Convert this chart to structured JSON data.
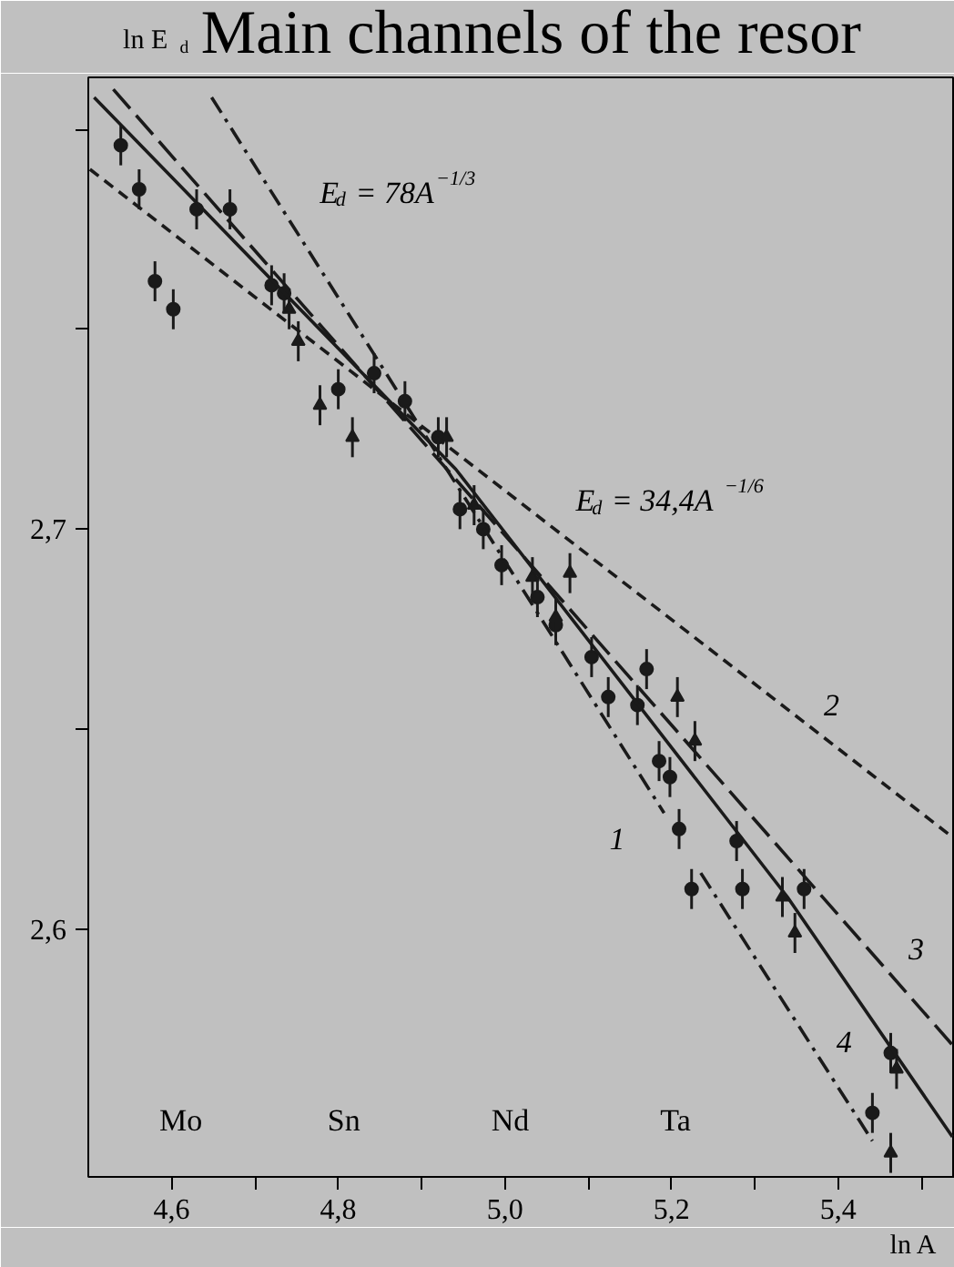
{
  "chart_data": {
    "type": "scatter",
    "title": "Main channels of the resor",
    "xlabel": "ln A",
    "ylabel": "ln E$_{d}$",
    "xlim": [
      4.5,
      5.54
    ],
    "ylim": [
      2.538,
      2.813
    ],
    "xticks": [
      {
        "value": 4.6,
        "label": "4,6"
      },
      {
        "value": 4.7,
        "label": null
      },
      {
        "value": 4.8,
        "label": "4,8"
      },
      {
        "value": 4.9,
        "label": null
      },
      {
        "value": 5.0,
        "label": "5,0"
      },
      {
        "value": 5.1,
        "label": null
      },
      {
        "value": 5.2,
        "label": "5,2"
      },
      {
        "value": 5.3,
        "label": null
      },
      {
        "value": 5.4,
        "label": "5,4"
      },
      {
        "value": 5.5,
        "label": null
      }
    ],
    "yticks": [
      {
        "value": 2.6,
        "label": "2,6"
      },
      {
        "value": 2.65,
        "label": null
      },
      {
        "value": 2.7,
        "label": "2,7"
      },
      {
        "value": 2.75,
        "label": null
      },
      {
        "value": 2.8,
        "label": null
      }
    ],
    "series": [
      {
        "marker": "circle",
        "color": "#1a1a1a",
        "x": [
          4.539,
          4.561,
          4.58,
          4.602,
          4.63,
          4.67,
          4.72,
          4.735,
          4.8,
          4.843,
          4.88,
          4.92,
          4.946,
          4.974,
          4.996,
          5.039,
          5.061,
          5.104,
          5.124,
          5.159,
          5.17,
          5.185,
          5.198,
          5.209,
          5.224,
          5.278,
          5.285,
          5.359,
          5.441,
          5.463
        ],
        "values": [
          2.796,
          2.785,
          2.762,
          2.755,
          2.78,
          2.78,
          2.761,
          2.759,
          2.735,
          2.739,
          2.732,
          2.723,
          2.705,
          2.7,
          2.691,
          2.683,
          2.676,
          2.668,
          2.658,
          2.656,
          2.665,
          2.642,
          2.638,
          2.625,
          2.61,
          2.622,
          2.61,
          2.61,
          2.554,
          2.569
        ],
        "errors": [
          0.005,
          0.005,
          0.005,
          0.005,
          0.005,
          0.005,
          0.005,
          0.005,
          0.005,
          0.005,
          0.005,
          0.005,
          0.005,
          0.005,
          0.005,
          0.005,
          0.005,
          0.005,
          0.005,
          0.005,
          0.005,
          0.005,
          0.005,
          0.005,
          0.005,
          0.005,
          0.005,
          0.005,
          0.005,
          0.005
        ]
      },
      {
        "marker": "triangle",
        "color": "#1a1a1a",
        "x": [
          4.741,
          4.752,
          4.778,
          4.817,
          4.93,
          4.963,
          5.033,
          5.061,
          5.078,
          5.207,
          5.228,
          5.333,
          5.348,
          5.47,
          5.463
        ],
        "values": [
          2.755,
          2.747,
          2.731,
          2.723,
          2.723,
          2.706,
          2.688,
          2.678,
          2.689,
          2.658,
          2.647,
          2.608,
          2.599,
          2.565,
          2.544
        ],
        "errors": [
          0.005,
          0.005,
          0.005,
          0.005,
          0.005,
          0.005,
          0.005,
          0.005,
          0.005,
          0.005,
          0.005,
          0.005,
          0.005,
          0.005,
          0.005
        ]
      },
      {
        "type": "line",
        "name": "1",
        "line_style": "dashdot",
        "color": "#1a1a1a",
        "x": [
          4.648,
          5.191
        ],
        "values": [
          2.808,
          2.629
        ]
      },
      {
        "type": "line",
        "name": "2",
        "line_style": "dashed",
        "color": "#1a1a1a",
        "x": [
          4.502,
          5.537
        ],
        "values": [
          2.79,
          2.623
        ]
      },
      {
        "type": "line",
        "name": "3",
        "line_style": "longdash",
        "color": "#1a1a1a",
        "x": [
          4.53,
          5.537
        ],
        "values": [
          2.81,
          2.571
        ]
      },
      {
        "type": "line",
        "name": "4",
        "line_style": "dashdot",
        "color": "#1a1a1a",
        "x": [
          5.235,
          5.441
        ],
        "values": [
          2.614,
          2.547
        ]
      },
      {
        "type": "line",
        "line_style": "solid",
        "color": "#1a1a1a",
        "x": [
          4.507,
          4.941,
          5.339,
          5.537
        ],
        "values": [
          2.808,
          2.715,
          2.608,
          2.548
        ]
      }
    ],
    "annotations": [
      "E$_{d}$ = 78A$^{−1/3}$",
      "E$_{d}$ = 34,4A$^{−1/6}$",
      "Mo",
      "Sn",
      "Nd",
      "Ta"
    ]
  }
}
